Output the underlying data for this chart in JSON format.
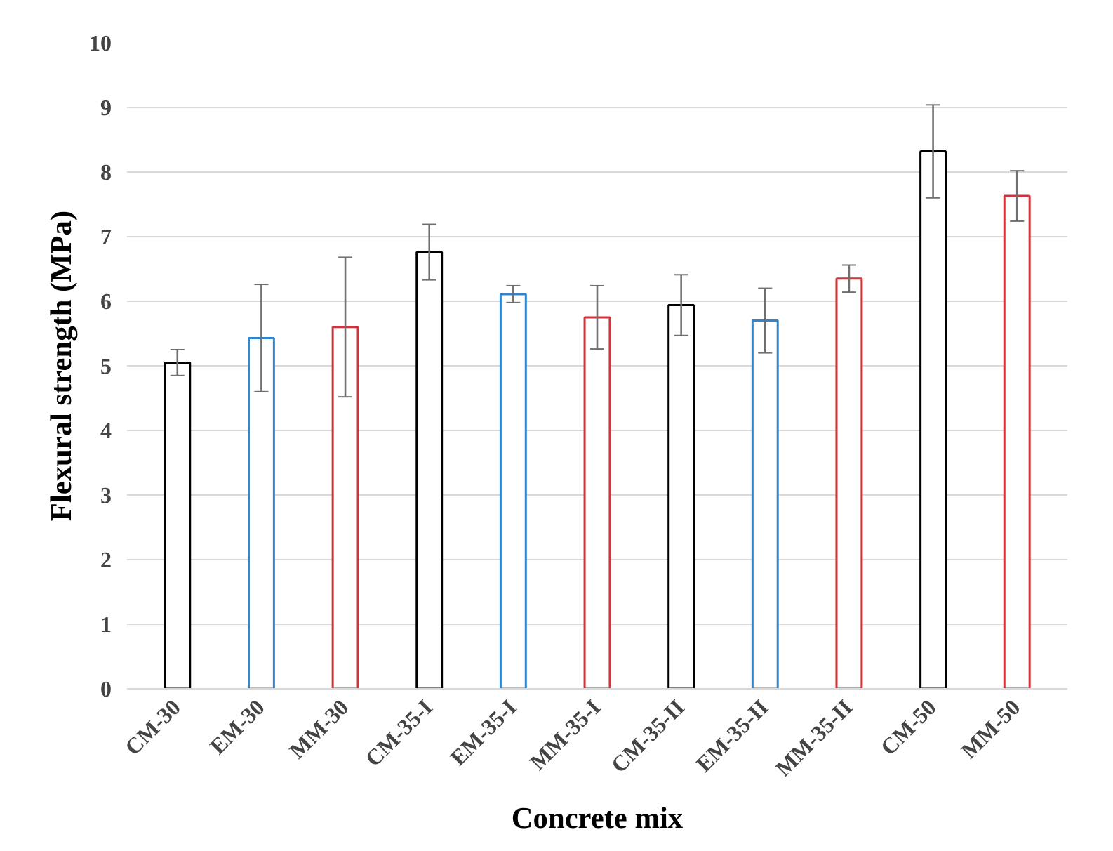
{
  "chart_data": {
    "type": "bar",
    "xlabel": "Concrete mix",
    "ylabel": "Flexural strength (MPa)",
    "categories": [
      "CM-30",
      "EM-30",
      "MM-30",
      "CM-35-I",
      "EM-35-I",
      "MM-35-I",
      "CM-35-II",
      "EM-35-II",
      "MM-35-II",
      "CM-50",
      "MM-50"
    ],
    "values": [
      5.05,
      5.43,
      5.6,
      6.76,
      6.11,
      5.75,
      5.94,
      5.7,
      6.35,
      8.32,
      7.63
    ],
    "errors": [
      0.2,
      0.83,
      1.08,
      0.43,
      0.13,
      0.49,
      0.47,
      0.5,
      0.21,
      0.72,
      0.39
    ],
    "colors": [
      "#000000",
      "#2e86d1",
      "#d0333a",
      "#000000",
      "#2e86d1",
      "#d0333a",
      "#000000",
      "#2e86d1",
      "#d0333a",
      "#000000",
      "#d0333a"
    ],
    "ylim": [
      0,
      10
    ],
    "yticks": [
      0,
      1,
      2,
      3,
      4,
      5,
      6,
      7,
      8,
      9,
      10
    ],
    "grid": "y"
  }
}
